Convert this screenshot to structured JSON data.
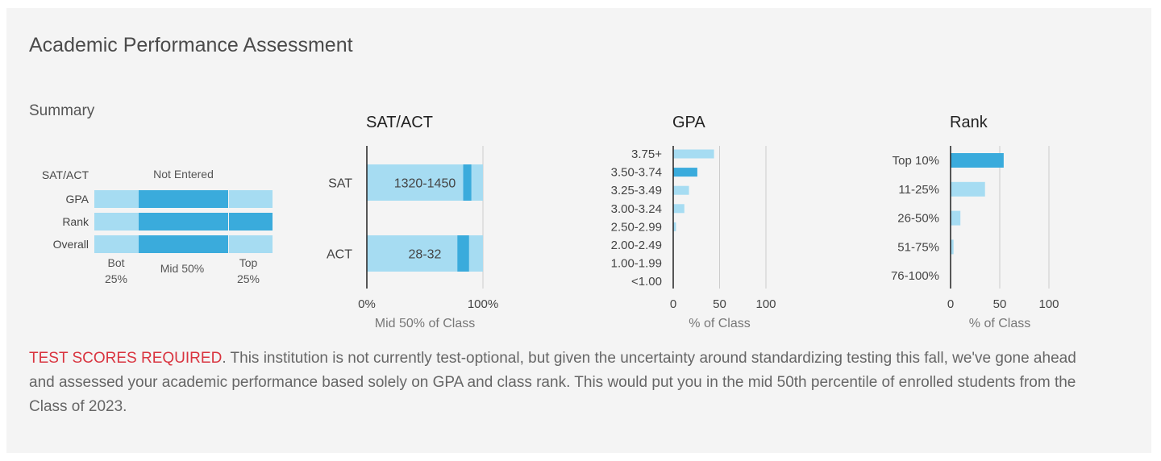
{
  "page": {
    "title": "Academic Performance Assessment",
    "footer": {
      "highlight": "TEST SCORES REQUIRED",
      "text": ". This institution is not currently test-optional, but given the uncertainty around standardizing testing this fall, we've gone ahead and assessed your academic performance based solely on GPA and class rank. This would put you in the mid 50th percentile of enrolled students from the Class of 2023."
    },
    "summary": {
      "title": "Summary",
      "rows": [
        {
          "label": "SAT/ACT",
          "value": "Not Entered",
          "bar": false
        },
        {
          "label": "GPA",
          "bar": true
        },
        {
          "label": "Rank",
          "bar": true
        },
        {
          "label": "Overall",
          "bar": true
        }
      ],
      "legend": {
        "bottom": "Bot\n25%",
        "middle": "Mid 50%",
        "top": "Top\n25%"
      },
      "segments_pct": [
        25,
        75
      ]
    },
    "colors": {
      "light": "#a6dcf2",
      "dark": "#3aabdc",
      "axis": "#222222",
      "grid": "#cccccc",
      "text": "#444444"
    }
  },
  "chart_data": [
    {
      "type": "bar",
      "orientation": "horizontal",
      "title": "SAT/ACT",
      "xlabel": "Mid 50% of Class",
      "xlim": [
        0,
        100
      ],
      "xticks": [
        "0%",
        "100%"
      ],
      "categories": [
        "SAT",
        "ACT"
      ],
      "range_labels": [
        "1320-1450",
        "28-32"
      ],
      "student_marker_pct": [
        [
          83,
          90
        ],
        [
          78,
          88
        ]
      ]
    },
    {
      "type": "bar",
      "orientation": "horizontal",
      "title": "GPA",
      "xlabel": "% of Class",
      "xlim": [
        0,
        100
      ],
      "xticks": [
        0,
        50,
        100
      ],
      "categories": [
        "3.75+",
        "3.50-3.74",
        "3.25-3.49",
        "3.00-3.24",
        "2.50-2.99",
        "2.00-2.49",
        "1.00-1.99",
        "<1.00"
      ],
      "values": [
        44,
        26,
        17,
        12,
        3,
        0,
        0,
        0
      ],
      "highlight_index": 1
    },
    {
      "type": "bar",
      "orientation": "horizontal",
      "title": "Rank",
      "xlabel": "% of Class",
      "xlim": [
        0,
        100
      ],
      "xticks": [
        0,
        50,
        100
      ],
      "categories": [
        "Top 10%",
        "11-25%",
        "26-50%",
        "51-75%",
        "76-100%"
      ],
      "values": [
        54,
        35,
        10,
        3,
        0
      ],
      "highlight_index": 0
    }
  ]
}
